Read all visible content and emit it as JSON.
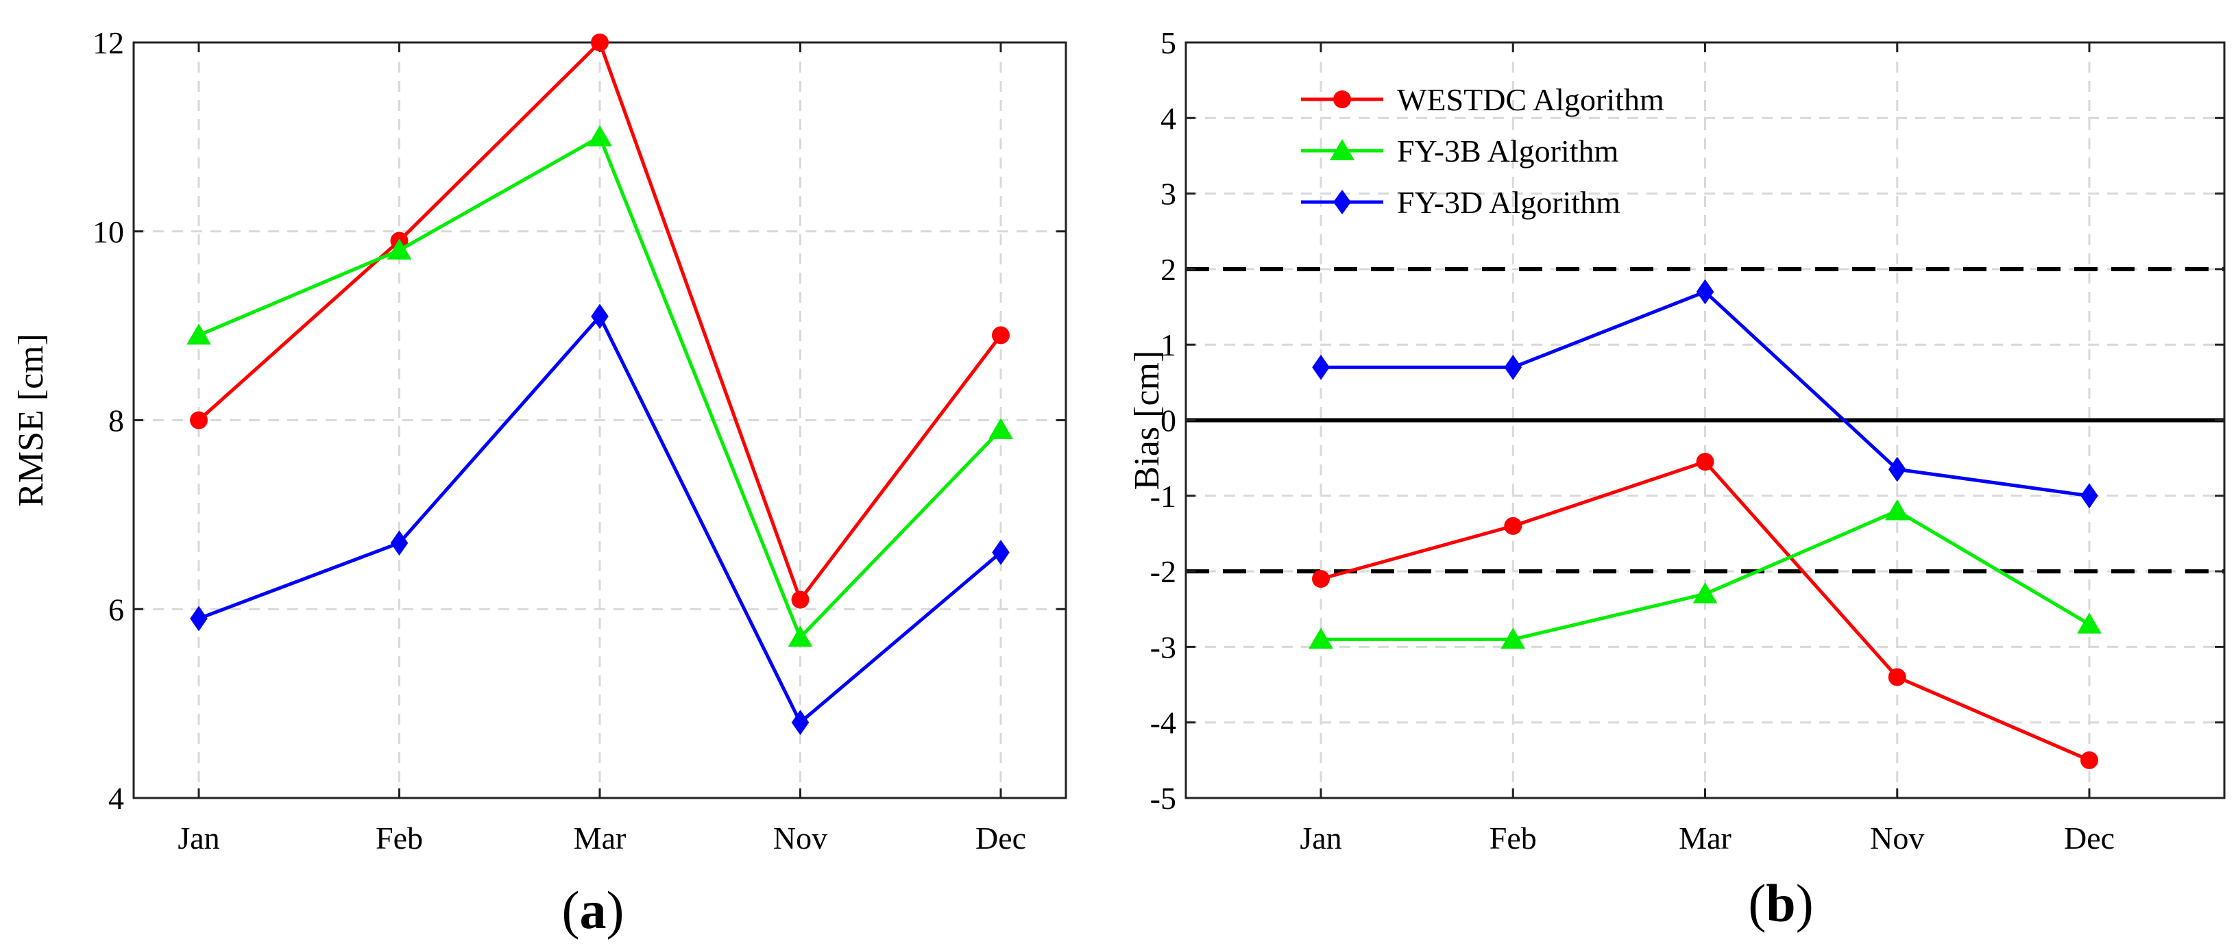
{
  "chart_data": [
    {
      "type": "line",
      "panel_label": "a",
      "title": "",
      "xlabel": "",
      "ylabel": "RMSE [cm]",
      "categories": [
        "Jan",
        "Feb",
        "Mar",
        "Nov",
        "Dec"
      ],
      "ylim": [
        4,
        12
      ],
      "yticks": [
        4,
        6,
        8,
        10,
        12
      ],
      "grid": true,
      "series": [
        {
          "name": "WESTDC Algorithm",
          "color": "#ff0000",
          "marker": "circle",
          "values": [
            8.0,
            9.9,
            12.0,
            6.1,
            8.9
          ]
        },
        {
          "name": "FY-3B Algorithm",
          "color": "#00ee00",
          "marker": "triangle",
          "values": [
            8.9,
            9.8,
            11.0,
            5.7,
            7.9
          ]
        },
        {
          "name": "FY-3D Algorithm",
          "color": "#0000ff",
          "marker": "diamond",
          "values": [
            5.9,
            6.7,
            9.1,
            4.8,
            6.6
          ]
        }
      ]
    },
    {
      "type": "line",
      "panel_label": "b",
      "title": "",
      "xlabel": "",
      "ylabel": "Bias [cm]",
      "categories": [
        "Jan",
        "Feb",
        "Mar",
        "Nov",
        "Dec"
      ],
      "ylim": [
        -5,
        5
      ],
      "yticks": [
        -5,
        -4,
        -3,
        -2,
        -1,
        0,
        1,
        2,
        3,
        4,
        5
      ],
      "grid": true,
      "legend": "top-left",
      "reference_lines": [
        {
          "value": 2,
          "style": "dashed"
        },
        {
          "value": 0,
          "style": "solid"
        },
        {
          "value": -2,
          "style": "dashed"
        }
      ],
      "series": [
        {
          "name": "WESTDC Algorithm",
          "color": "#ff0000",
          "marker": "circle",
          "values": [
            -2.1,
            -1.4,
            -0.55,
            -3.4,
            -4.5
          ]
        },
        {
          "name": "FY-3B Algorithm",
          "color": "#00ee00",
          "marker": "triangle",
          "values": [
            -2.9,
            -2.9,
            -2.3,
            -1.2,
            -2.7
          ]
        },
        {
          "name": "FY-3D Algorithm",
          "color": "#0000ff",
          "marker": "diamond",
          "values": [
            0.7,
            0.7,
            1.7,
            -0.65,
            -1.0
          ]
        }
      ]
    }
  ]
}
